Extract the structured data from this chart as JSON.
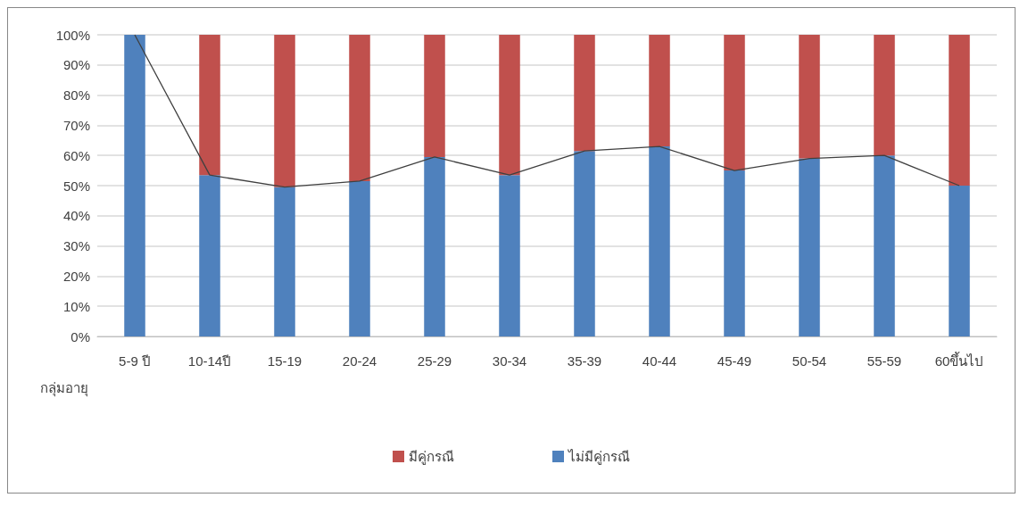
{
  "chart_data": {
    "type": "bar",
    "stacked": true,
    "xlabel": "กลุ่มอายุ",
    "categories": [
      "5-9 ปี",
      "10-14ปี",
      "15-19",
      "20-24",
      "25-29",
      "30-34",
      "35-39",
      "40-44",
      "45-49",
      "50-54",
      "55-59",
      "60ขึ้นไป"
    ],
    "series": [
      {
        "name": "ไม่มีคู่กรณี",
        "color": "#4f81bd",
        "values": [
          100,
          53.5,
          49.5,
          51.5,
          59.5,
          53.5,
          61.5,
          63,
          55,
          59,
          60,
          50
        ]
      },
      {
        "name": "มีคู่กรณี",
        "color": "#c0504d",
        "values": [
          0,
          46.5,
          50.5,
          48.5,
          40.5,
          46.5,
          38.5,
          37,
          45,
          41,
          40,
          50
        ]
      },
      {
        "type": "line",
        "color": "#404040",
        "values": [
          100,
          53.5,
          49.5,
          51.5,
          59.5,
          53.5,
          61.5,
          63,
          55,
          59,
          60,
          50
        ]
      }
    ],
    "ylim": [
      0,
      100
    ],
    "yticks": [
      {
        "value": 0,
        "label": "0%"
      },
      {
        "value": 10,
        "label": "10%"
      },
      {
        "value": 20,
        "label": "20%"
      },
      {
        "value": 30,
        "label": "30%"
      },
      {
        "value": 40,
        "label": "40%"
      },
      {
        "value": 50,
        "label": "50%"
      },
      {
        "value": 60,
        "label": "60%"
      },
      {
        "value": 70,
        "label": "70%"
      },
      {
        "value": 80,
        "label": "80%"
      },
      {
        "value": 90,
        "label": "90%"
      },
      {
        "value": 100,
        "label": "100%"
      }
    ],
    "grid": "y",
    "legend": "bottom",
    "marker": "none"
  }
}
